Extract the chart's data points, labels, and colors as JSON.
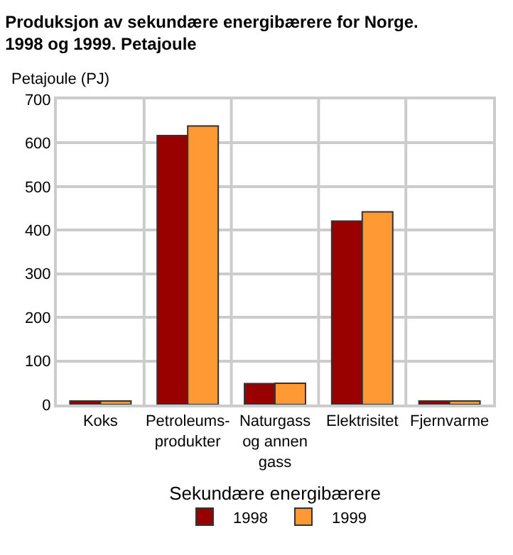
{
  "chart_data": {
    "type": "bar",
    "title": "Produksjon av sekundære energibærere for Norge.\n1998 og 1999. Petajoule",
    "ylabel": "Petajoule (PJ)",
    "xlabel": "Sekundære energibærere",
    "categories": [
      "Koks",
      "Petroleums-\nprodukter",
      "Naturgass\nog annen\ngass",
      "Elektrisitet",
      "Fjernvarme"
    ],
    "series": [
      {
        "name": "1998",
        "color": "#990000",
        "values": [
          8,
          617,
          48,
          421,
          8
        ]
      },
      {
        "name": "1999",
        "color": "#ff9933",
        "values": [
          8,
          639,
          49,
          442,
          8
        ]
      }
    ],
    "ylim": [
      0,
      700
    ],
    "yticks": [
      0,
      100,
      200,
      300,
      400,
      500,
      600,
      700
    ],
    "grid": true,
    "legend": "bottom"
  }
}
